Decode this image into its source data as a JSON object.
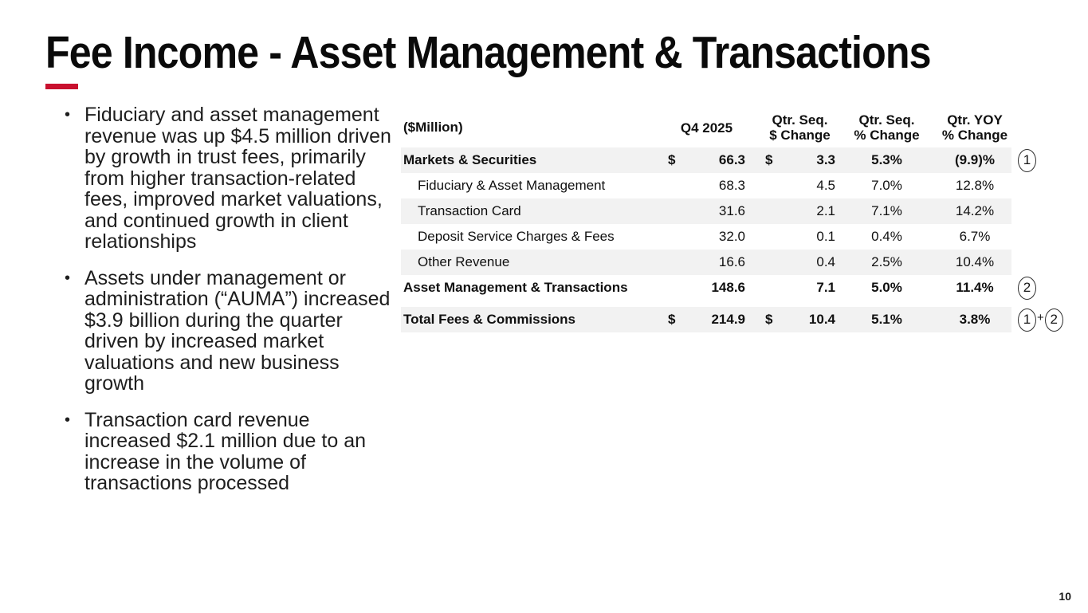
{
  "slide": {
    "title": "Fee Income - Asset Management & Transactions",
    "page_number": "10",
    "accent_color": "#C8102E",
    "row_shade_color": "#f2f2f2"
  },
  "bullets": [
    "Fiduciary and asset management revenue was up $4.5 million driven by growth in trust fees, primarily from higher transaction-related fees, improved market valuations, and continued growth in client relationships",
    "Assets under management or administration (“AUMA”) increased $3.9 billion during the quarter driven by increased market valuations and new business growth",
    "Transaction card revenue increased $2.1 million due to an increase in the volume of transactions processed"
  ],
  "table": {
    "unit_label": "($Million)",
    "headers": {
      "q4": "Q4 2025",
      "seq_dollar_line1": "Qtr. Seq.",
      "seq_dollar_line2": "$ Change",
      "seq_pct_line1": "Qtr. Seq.",
      "seq_pct_line2": "% Change",
      "yoy_pct_line1": "Qtr. YOY",
      "yoy_pct_line2": "% Change"
    },
    "rows": [
      {
        "label": "Markets & Securities",
        "d1": "$",
        "q4": "66.3",
        "d2": "$",
        "chg": "3.3",
        "seq_pct": "5.3%",
        "yoy_pct": "(9.9)%",
        "bold": true,
        "shaded": true,
        "indent": false,
        "gap_above": false,
        "notes": [
          "1"
        ]
      },
      {
        "label": "Fiduciary & Asset Management",
        "d1": "",
        "q4": "68.3",
        "d2": "",
        "chg": "4.5",
        "seq_pct": "7.0%",
        "yoy_pct": "12.8%",
        "bold": false,
        "shaded": false,
        "indent": true,
        "gap_above": false,
        "notes": []
      },
      {
        "label": "Transaction Card",
        "d1": "",
        "q4": "31.6",
        "d2": "",
        "chg": "2.1",
        "seq_pct": "7.1%",
        "yoy_pct": "14.2%",
        "bold": false,
        "shaded": true,
        "indent": true,
        "gap_above": false,
        "notes": []
      },
      {
        "label": "Deposit Service Charges & Fees",
        "d1": "",
        "q4": "32.0",
        "d2": "",
        "chg": "0.1",
        "seq_pct": "0.4%",
        "yoy_pct": "6.7%",
        "bold": false,
        "shaded": false,
        "indent": true,
        "gap_above": false,
        "notes": []
      },
      {
        "label": "Other Revenue",
        "d1": "",
        "q4": "16.6",
        "d2": "",
        "chg": "0.4",
        "seq_pct": "2.5%",
        "yoy_pct": "10.4%",
        "bold": false,
        "shaded": true,
        "indent": true,
        "gap_above": false,
        "notes": []
      },
      {
        "label": "Asset Management & Transactions",
        "d1": "",
        "q4": "148.6",
        "d2": "",
        "chg": "7.1",
        "seq_pct": "5.0%",
        "yoy_pct": "11.4%",
        "bold": true,
        "shaded": false,
        "indent": false,
        "gap_above": false,
        "notes": [
          "2"
        ]
      },
      {
        "label": "Total Fees & Commissions",
        "d1": "$",
        "q4": "214.9",
        "d2": "$",
        "chg": "10.4",
        "seq_pct": "5.1%",
        "yoy_pct": "3.8%",
        "bold": true,
        "shaded": true,
        "indent": false,
        "gap_above": true,
        "notes": [
          "1",
          "+",
          "2"
        ]
      }
    ]
  }
}
